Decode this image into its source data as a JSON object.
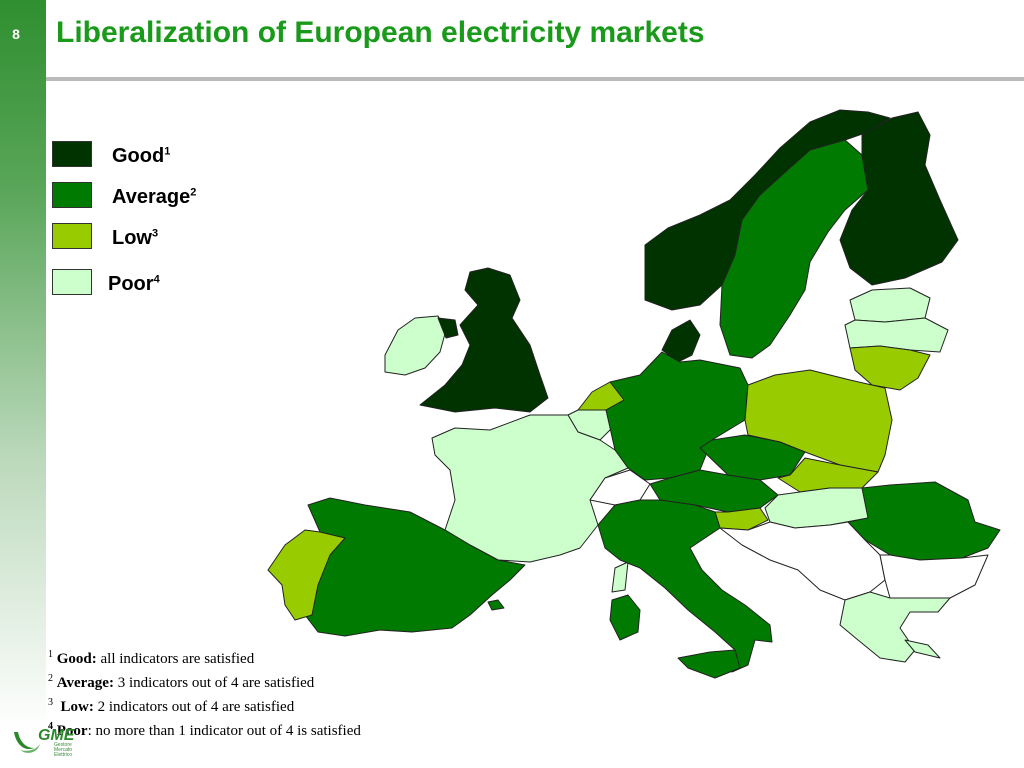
{
  "slide": {
    "page_number": "8",
    "title": "Liberalization of European electricity markets"
  },
  "colors": {
    "good": "#003300",
    "average": "#007a00",
    "low": "#99cc00",
    "poor": "#ccffcc",
    "na": "#ffffff",
    "accent": "#1a9a1a"
  },
  "legend": [
    {
      "label": "Good",
      "sup": "1",
      "category": "good"
    },
    {
      "label": "Average",
      "sup": "2",
      "category": "average"
    },
    {
      "label": "Low",
      "sup": "3",
      "category": "low"
    },
    {
      "label": "Poor",
      "sup": "4",
      "category": "poor"
    }
  ],
  "footnotes": [
    {
      "sup": "1",
      "term": "Good:",
      "text": " all indicators are satisfied"
    },
    {
      "sup": "2",
      "term": "Average:",
      "text": "  3 indicators out of 4 are satisfied"
    },
    {
      "sup": "3",
      "term": "Low:",
      "text": " 2 indicators out of 4 are satisfied"
    },
    {
      "sup": "4",
      "term": "Poor",
      "text": ": no more than 1 indicator out of 4 is satisfied"
    }
  ],
  "logo": {
    "name": "GME",
    "sub": [
      "Gestore",
      "Mercato",
      "Elettrico"
    ]
  }
}
